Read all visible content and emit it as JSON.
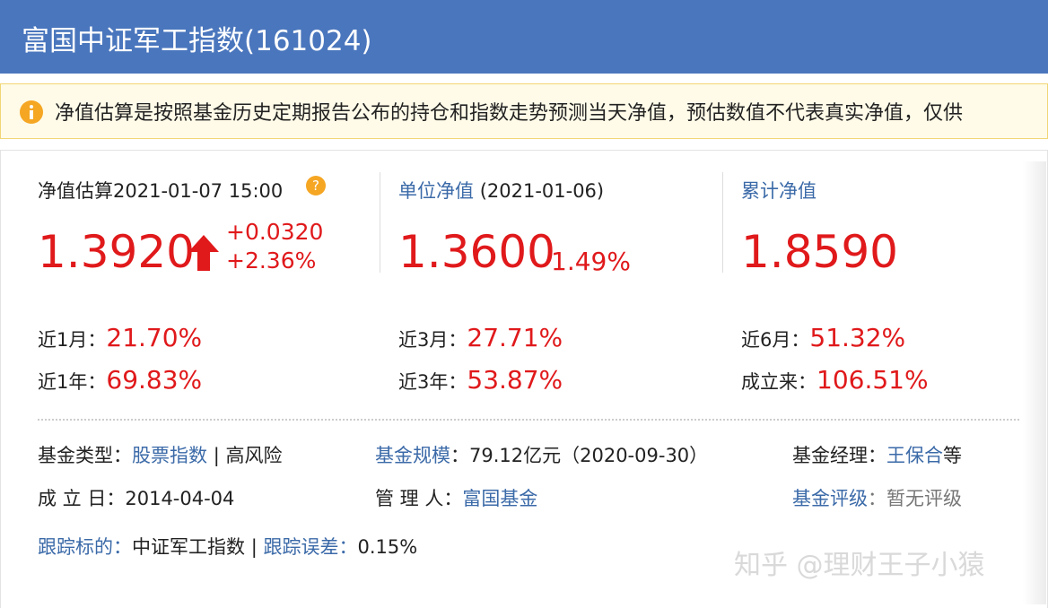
{
  "header": {
    "title": "富国中证军工指数(161024)"
  },
  "notice": {
    "text": "净值估算是按照基金历史定期报告公布的持仓和指数走势预测当天净值，预估数值不代表真实净值，仅供"
  },
  "estimate": {
    "label": "净值估算",
    "time": "2021-01-07 15:00",
    "value": "1.3920",
    "change": "+0.0320",
    "change_pct": "+2.36%"
  },
  "unit_nav": {
    "label": "单位净值",
    "date": "(2021-01-06)",
    "value": "1.3600",
    "change_pct": "1.49%"
  },
  "cumulative_nav": {
    "label": "累计净值",
    "value": "1.8590"
  },
  "returns": [
    {
      "label": "近1月：",
      "value": "21.70%"
    },
    {
      "label": "近3月：",
      "value": "27.71%"
    },
    {
      "label": "近6月：",
      "value": "51.32%"
    },
    {
      "label": "近1年：",
      "value": "69.83%"
    },
    {
      "label": "近3年：",
      "value": "53.87%"
    },
    {
      "label": "成立来：",
      "value": "106.51%"
    }
  ],
  "info": {
    "fund_type": {
      "label": "基金类型：",
      "value": "股票指数",
      "separator": "|",
      "risk": "高风险"
    },
    "fund_size": {
      "label": "基金规模",
      "value": "：79.12亿元（2020-09-30）"
    },
    "manager": {
      "label": "基金经理：",
      "value": "王保合",
      "suffix": "等"
    },
    "inception": {
      "label": "成 立 日：",
      "value": "2014-04-04"
    },
    "custodian": {
      "label": "管 理 人：",
      "value": "富国基金"
    },
    "rating": {
      "label": "基金评级",
      "value": "：暂无评级"
    },
    "tracking": {
      "label": "跟踪标的：",
      "value": "中证军工指数",
      "separator": "|",
      "error_label": "跟踪误差：",
      "error_value": "0.15%"
    }
  },
  "watermark": "知乎 @理财王子小猿"
}
